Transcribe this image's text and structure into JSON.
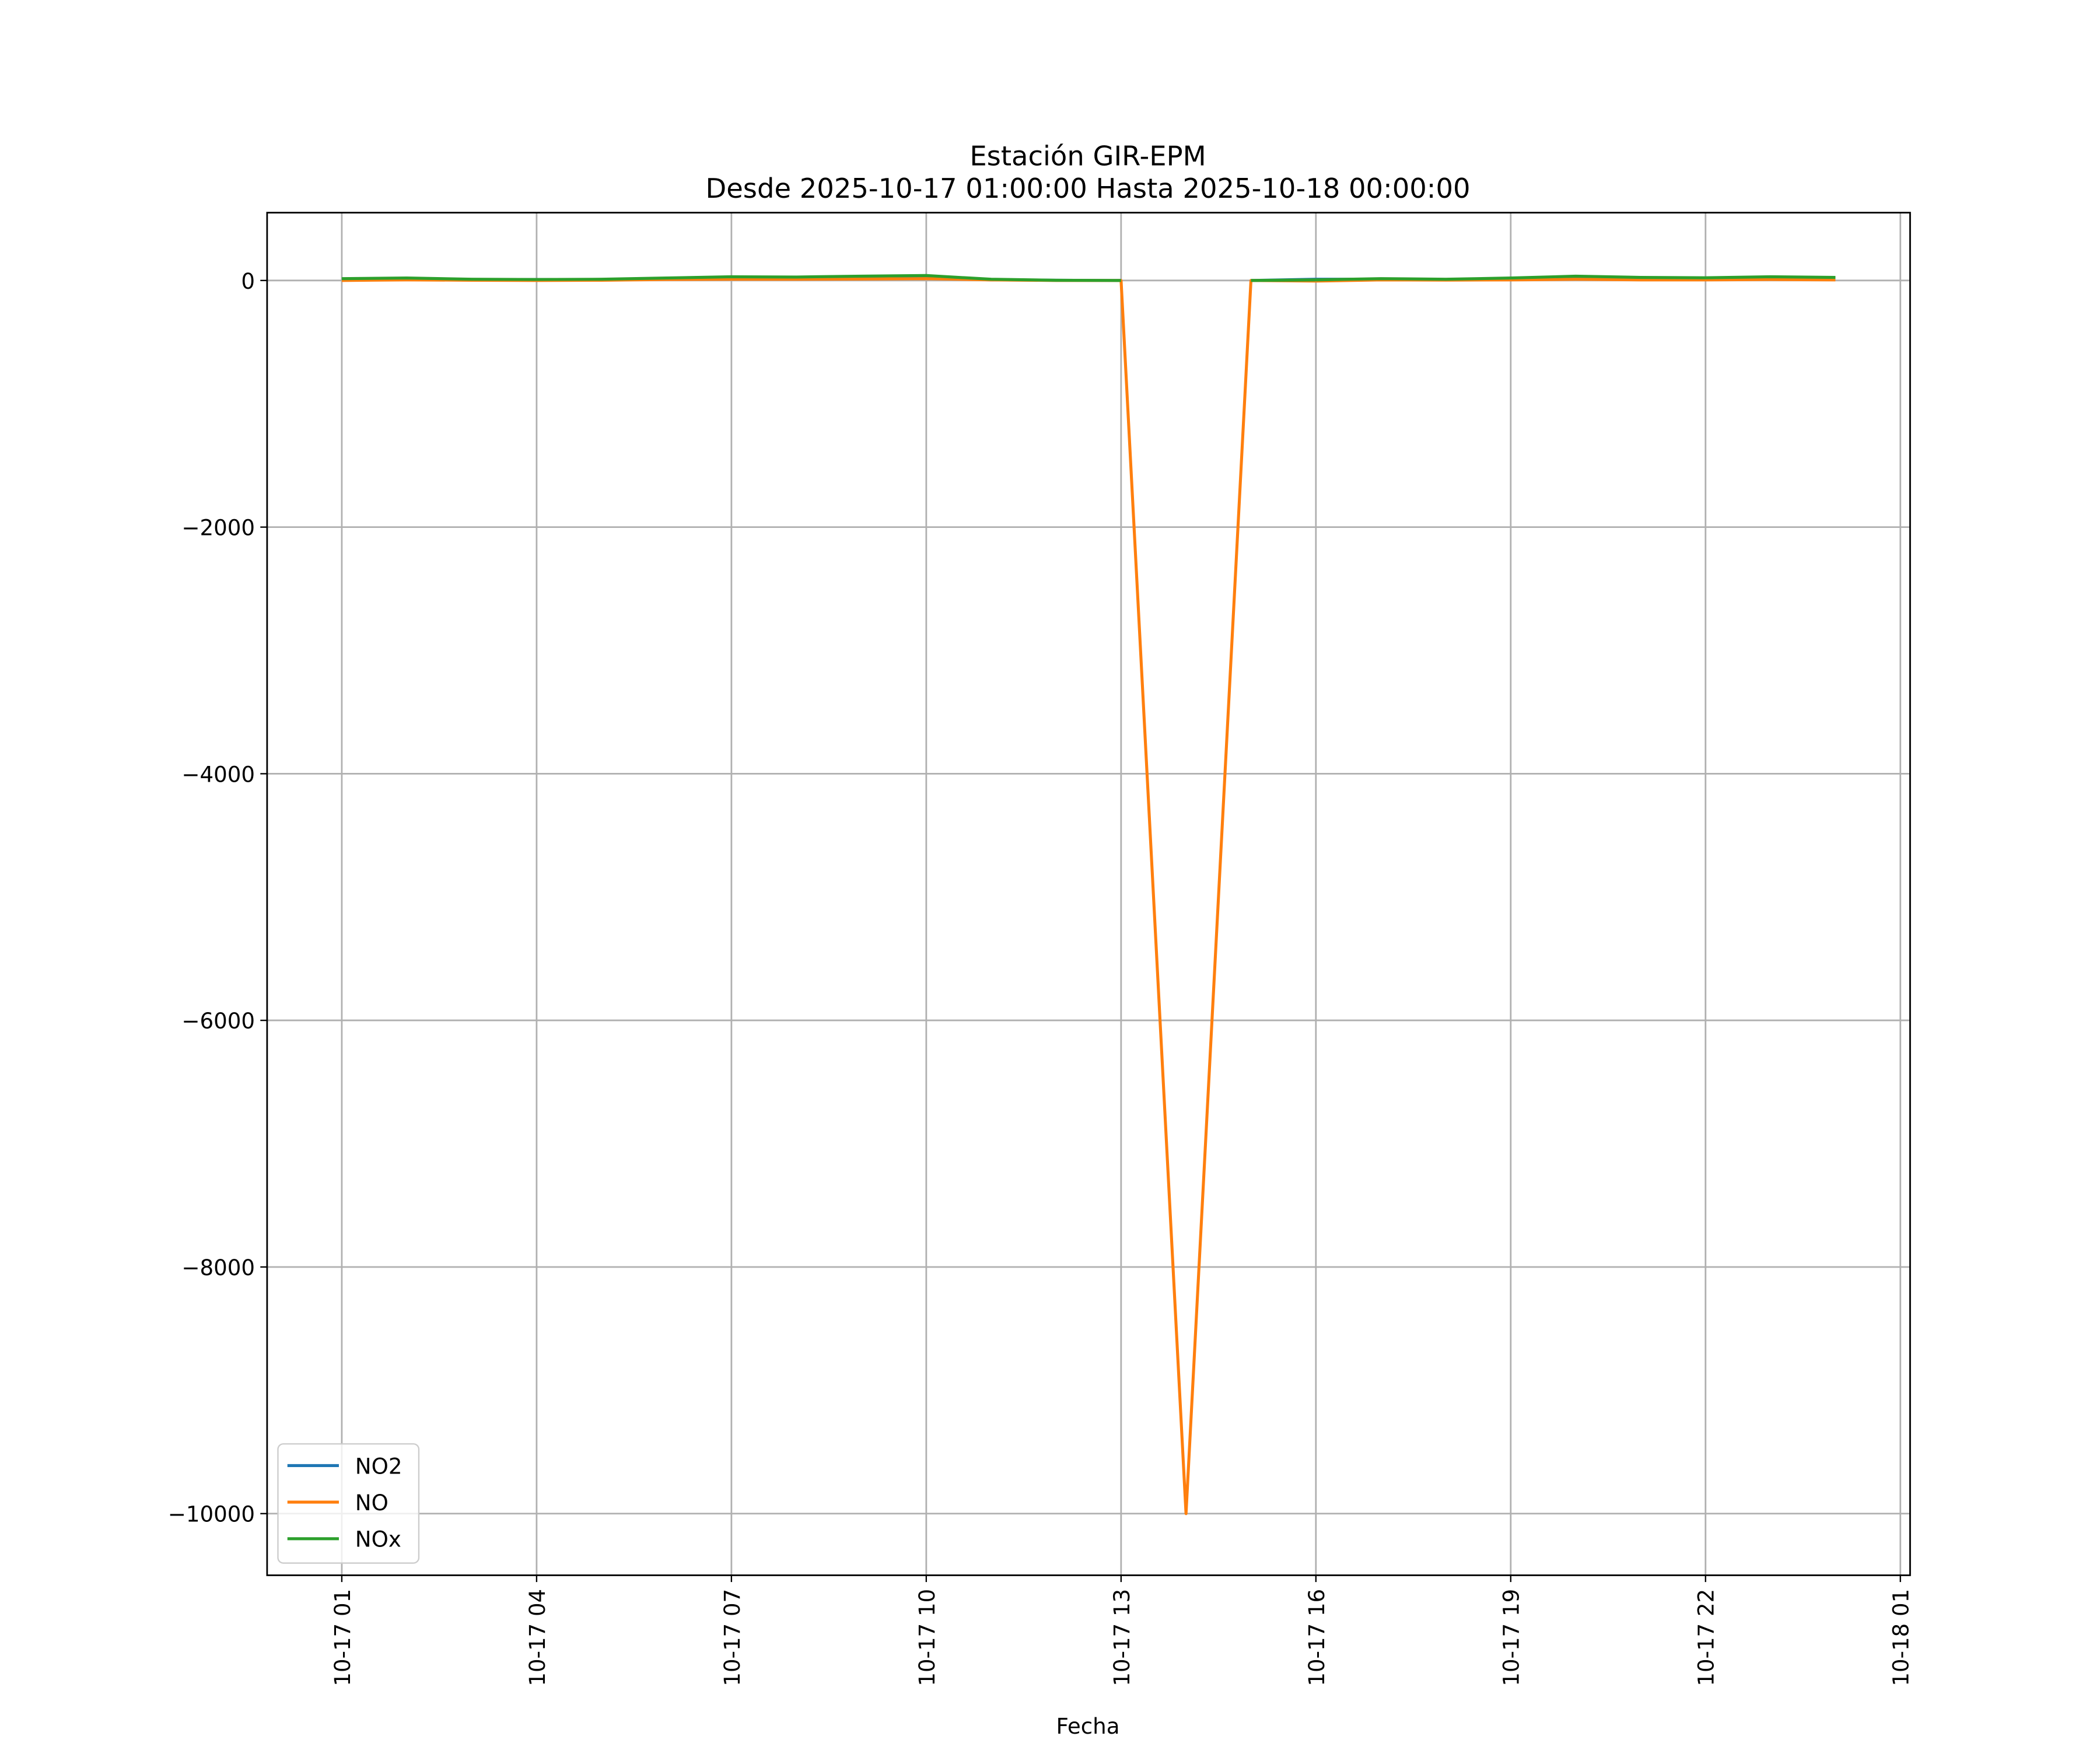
{
  "chart_data": {
    "type": "line",
    "title": "Estación GIR-EPM\nDesde 2025-10-17 01:00:00 Hasta 2025-10-18 00:00:00",
    "x_label": "Fecha",
    "x": [
      "10-17 01",
      "10-17 02",
      "10-17 03",
      "10-17 04",
      "10-17 05",
      "10-17 06",
      "10-17 07",
      "10-17 08",
      "10-17 09",
      "10-17 10",
      "10-17 11",
      "10-17 12",
      "10-17 13",
      "10-17 14",
      "10-17 15",
      "10-17 16",
      "10-17 17",
      "10-17 18",
      "10-17 19",
      "10-17 20",
      "10-17 21",
      "10-17 22",
      "10-17 23",
      "10-18 00"
    ],
    "series": [
      {
        "name": "NO2",
        "color": "#1f77b4",
        "values": [
          12,
          15,
          8,
          8,
          8,
          12,
          20,
          18,
          22,
          25,
          5,
          2,
          0,
          null,
          0,
          10,
          10,
          8,
          15,
          25,
          20,
          17,
          22,
          20
        ]
      },
      {
        "name": "NO",
        "color": "#ff7f0e",
        "values": [
          0,
          5,
          2,
          0,
          2,
          8,
          10,
          10,
          12,
          15,
          5,
          0,
          0,
          -10000,
          0,
          -5,
          5,
          3,
          5,
          10,
          5,
          5,
          8,
          5
        ]
      },
      {
        "name": "NOx",
        "color": "#2ca02c",
        "values": [
          15,
          20,
          10,
          8,
          10,
          20,
          30,
          28,
          35,
          40,
          10,
          2,
          0,
          null,
          0,
          5,
          15,
          10,
          20,
          35,
          25,
          22,
          30,
          25
        ]
      }
    ],
    "xlim": [
      "10-16 23:51",
      "10-18 01:09"
    ],
    "xticks": [
      "10-17 01",
      "10-17 04",
      "10-17 07",
      "10-17 10",
      "10-17 13",
      "10-17 16",
      "10-17 19",
      "10-17 22",
      "10-18 01"
    ],
    "ylim": [
      -10500,
      550
    ],
    "yticks": [
      {
        "value": 0,
        "label": "0"
      },
      {
        "value": -2000,
        "label": "−2000"
      },
      {
        "value": -4000,
        "label": "−4000"
      },
      {
        "value": -6000,
        "label": "−6000"
      },
      {
        "value": -8000,
        "label": "−8000"
      },
      {
        "value": -10000,
        "label": "−10000"
      }
    ],
    "grid": true,
    "legend": "lower left"
  }
}
